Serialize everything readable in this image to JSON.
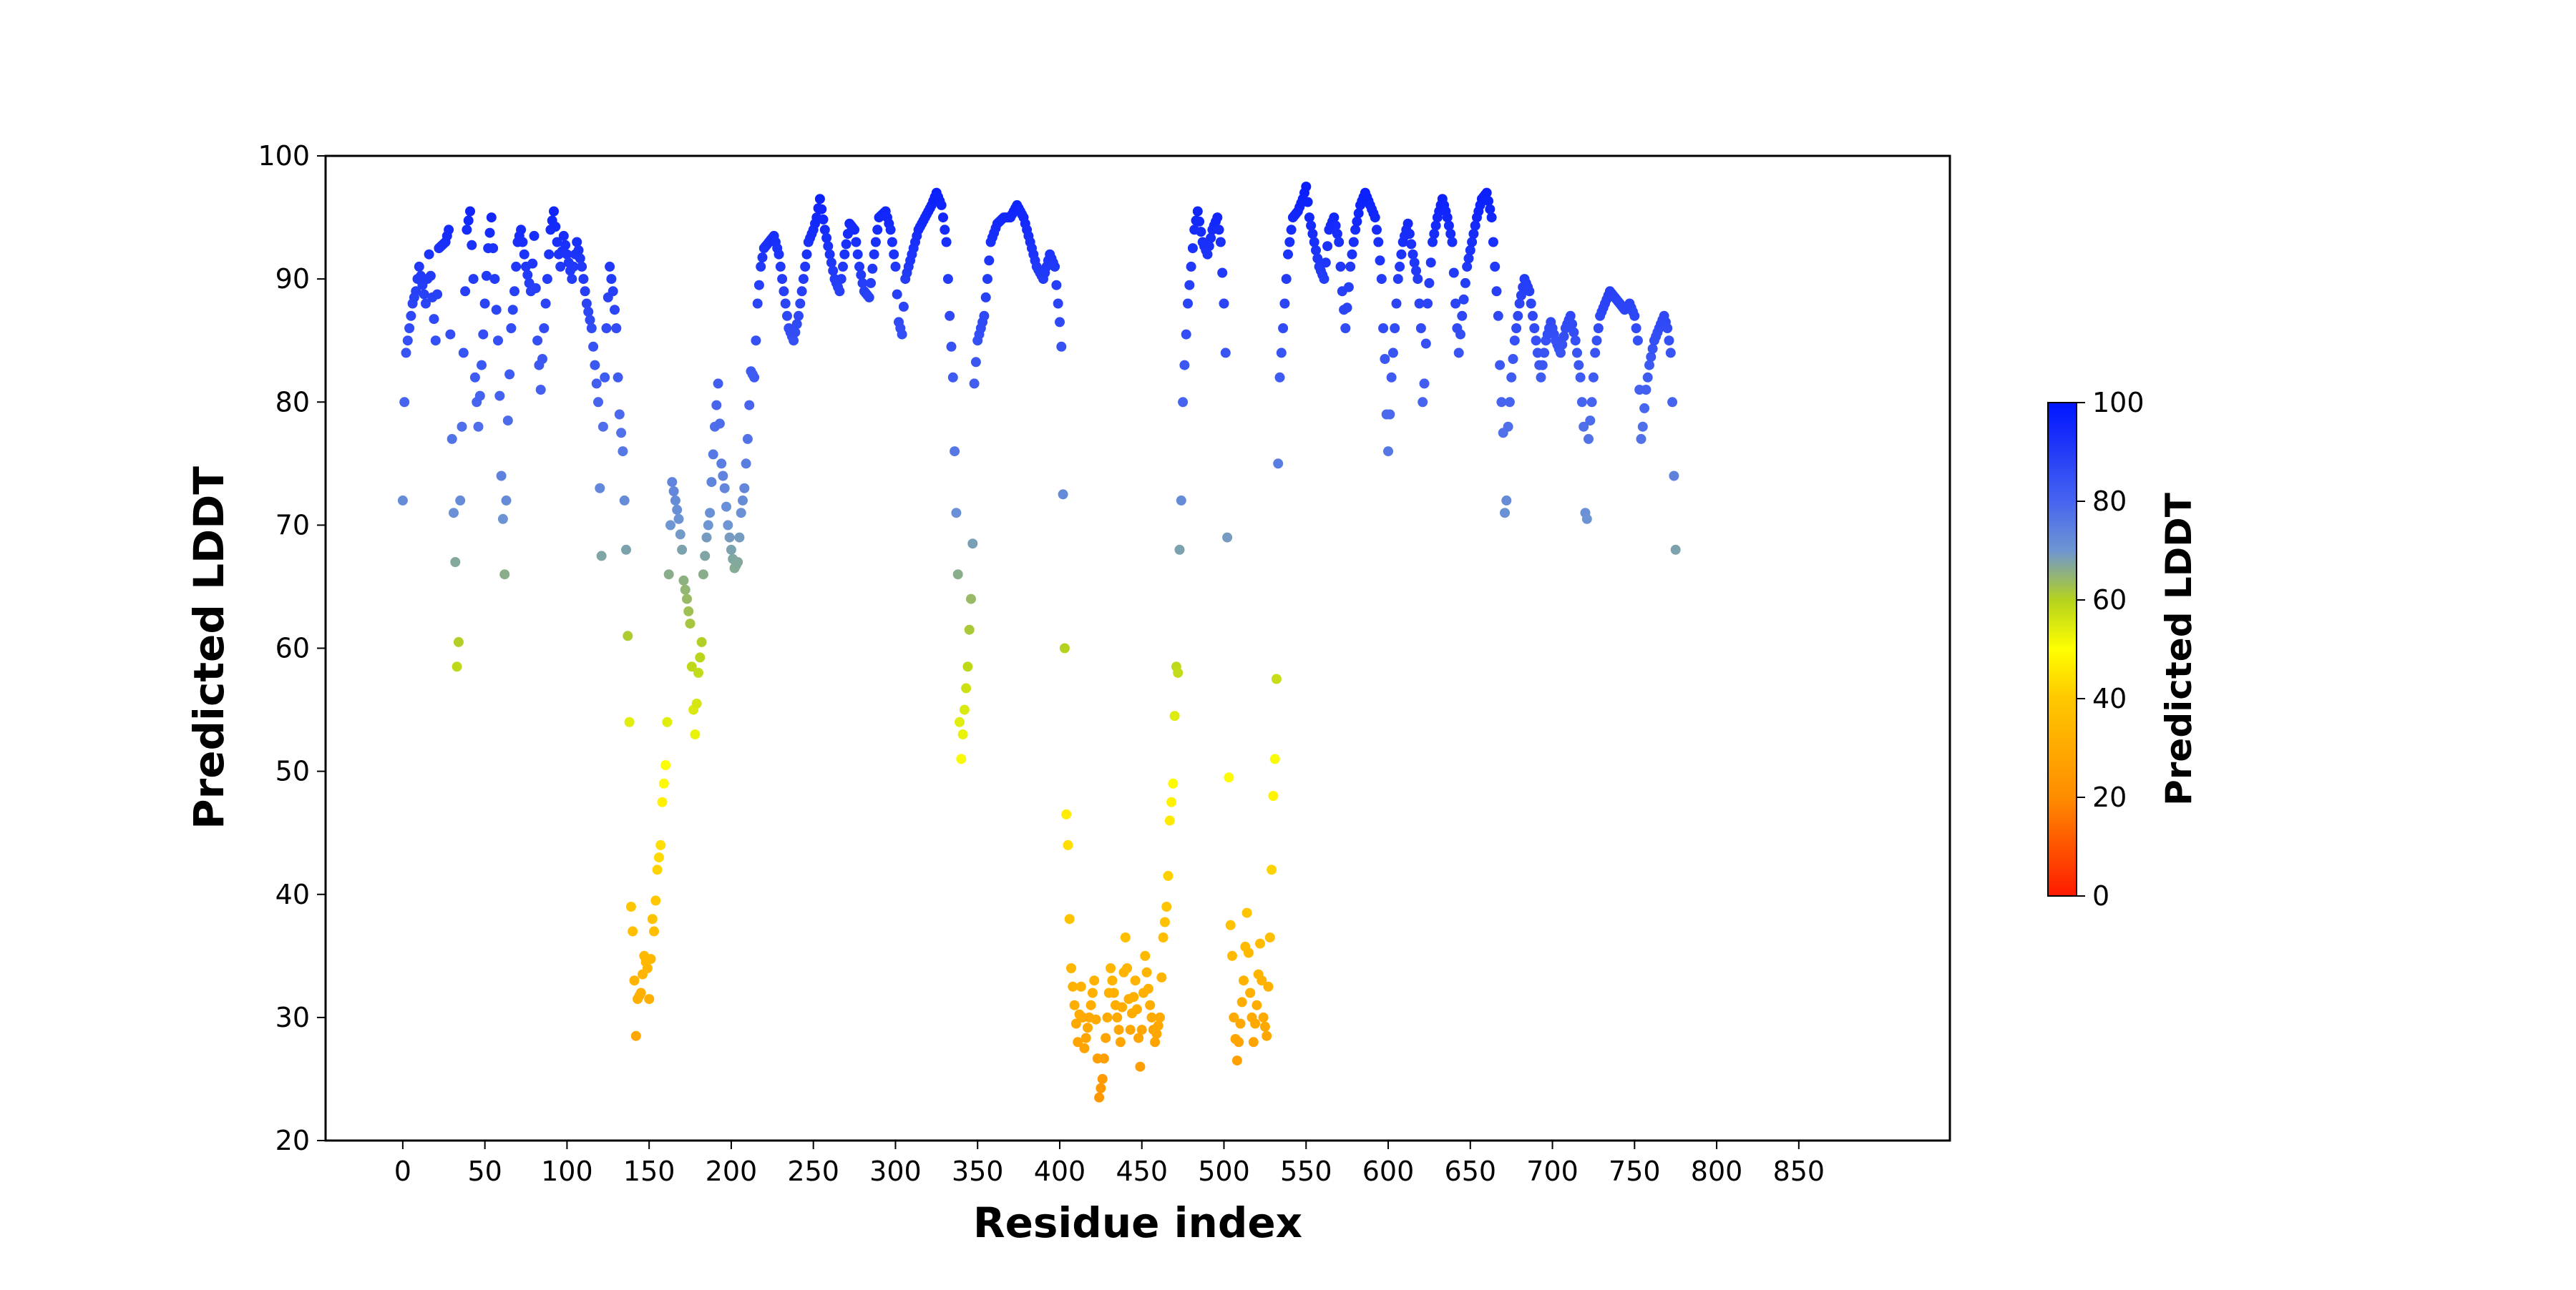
{
  "chart_data": {
    "type": "scatter",
    "title": "",
    "xlabel": "Residue index",
    "ylabel": "Predicted LDDT",
    "xlim": [
      -47,
      942
    ],
    "ylim": [
      20,
      100
    ],
    "xticks": [
      0,
      50,
      100,
      150,
      200,
      250,
      300,
      350,
      400,
      450,
      500,
      550,
      600,
      650,
      700,
      750,
      800,
      850
    ],
    "yticks": [
      20,
      30,
      40,
      50,
      60,
      70,
      80,
      90,
      100
    ],
    "grid": false,
    "legend": "none",
    "point_color_by": "y",
    "colorbar": {
      "label": "Predicted LDDT",
      "range": [
        0,
        100
      ],
      "ticks": [
        0,
        20,
        40,
        60,
        80,
        100
      ],
      "colors": [
        {
          "at": 0,
          "color": "#ff1a00"
        },
        {
          "at": 20,
          "color": "#ff8c00"
        },
        {
          "at": 40,
          "color": "#ffc800"
        },
        {
          "at": 50,
          "color": "#ffff00"
        },
        {
          "at": 60,
          "color": "#b4d21e"
        },
        {
          "at": 70,
          "color": "#6e96d2"
        },
        {
          "at": 80,
          "color": "#4664f0"
        },
        {
          "at": 100,
          "color": "#0014ff"
        }
      ]
    },
    "anchors": [
      [
        0,
        72
      ],
      [
        1,
        80
      ],
      [
        2,
        84
      ],
      [
        4,
        86
      ],
      [
        6,
        88
      ],
      [
        8,
        89
      ],
      [
        10,
        91
      ],
      [
        14,
        88
      ],
      [
        16,
        92
      ],
      [
        20,
        85
      ],
      [
        22,
        92.5
      ],
      [
        26,
        93
      ],
      [
        28,
        94
      ],
      [
        30,
        77
      ],
      [
        31,
        71
      ],
      [
        32,
        67
      ],
      [
        33,
        58.5
      ],
      [
        34,
        60.5
      ],
      [
        35,
        72
      ],
      [
        37,
        84
      ],
      [
        39,
        94
      ],
      [
        41,
        95.5
      ],
      [
        43,
        90
      ],
      [
        44,
        82
      ],
      [
        46,
        78
      ],
      [
        48,
        83
      ],
      [
        50,
        88
      ],
      [
        52,
        92.5
      ],
      [
        54,
        95
      ],
      [
        56,
        90
      ],
      [
        58,
        85
      ],
      [
        59,
        80.5
      ],
      [
        60,
        74
      ],
      [
        61,
        70.5
      ],
      [
        62,
        66
      ],
      [
        63,
        72
      ],
      [
        64,
        78.5
      ],
      [
        66,
        86
      ],
      [
        68,
        89
      ],
      [
        70,
        93
      ],
      [
        72,
        94
      ],
      [
        75,
        91
      ],
      [
        78,
        89
      ],
      [
        80,
        93.5
      ],
      [
        82,
        85
      ],
      [
        84,
        81
      ],
      [
        86,
        86
      ],
      [
        88,
        90
      ],
      [
        90,
        94
      ],
      [
        92,
        95.5
      ],
      [
        94,
        93
      ],
      [
        96,
        91
      ],
      [
        98,
        93.5
      ],
      [
        100,
        92
      ],
      [
        103,
        90
      ],
      [
        106,
        93
      ],
      [
        109,
        91
      ],
      [
        112,
        88
      ],
      [
        115,
        86
      ],
      [
        117,
        83
      ],
      [
        119,
        80
      ],
      [
        120,
        73
      ],
      [
        121,
        67.5
      ],
      [
        122,
        78
      ],
      [
        124,
        86
      ],
      [
        126,
        91
      ],
      [
        128,
        89
      ],
      [
        130,
        86
      ],
      [
        131,
        82
      ],
      [
        132,
        79
      ],
      [
        134,
        76
      ],
      [
        136,
        68
      ],
      [
        138,
        54
      ],
      [
        139,
        39
      ],
      [
        140,
        37
      ],
      [
        141,
        33
      ],
      [
        142,
        28.5
      ],
      [
        143,
        31.5
      ],
      [
        145,
        32
      ],
      [
        147,
        35
      ],
      [
        149,
        34
      ],
      [
        150,
        31.5
      ],
      [
        152,
        38
      ],
      [
        153,
        37
      ],
      [
        155,
        42
      ],
      [
        157,
        44
      ],
      [
        158,
        47.5
      ],
      [
        160,
        50.5
      ],
      [
        161,
        54
      ],
      [
        162,
        66
      ],
      [
        163,
        70
      ],
      [
        164,
        73.5
      ],
      [
        166,
        72
      ],
      [
        168,
        70.5
      ],
      [
        170,
        68
      ],
      [
        171,
        65.5
      ],
      [
        173,
        64
      ],
      [
        175,
        62
      ],
      [
        177,
        55
      ],
      [
        178,
        53
      ],
      [
        180,
        58
      ],
      [
        182,
        60.5
      ],
      [
        183,
        66
      ],
      [
        185,
        69
      ],
      [
        187,
        71
      ],
      [
        188,
        73.5
      ],
      [
        190,
        78
      ],
      [
        192,
        81.5
      ],
      [
        194,
        75
      ],
      [
        196,
        73
      ],
      [
        198,
        70
      ],
      [
        200,
        68
      ],
      [
        202,
        66.5
      ],
      [
        204,
        67
      ],
      [
        206,
        71
      ],
      [
        208,
        73
      ],
      [
        210,
        77
      ],
      [
        212,
        82.5
      ],
      [
        214,
        82
      ],
      [
        216,
        88
      ],
      [
        218,
        91
      ],
      [
        220,
        92.5
      ],
      [
        223,
        93
      ],
      [
        226,
        93.5
      ],
      [
        229,
        92
      ],
      [
        232,
        89
      ],
      [
        235,
        86
      ],
      [
        238,
        85
      ],
      [
        241,
        87
      ],
      [
        244,
        90
      ],
      [
        247,
        93
      ],
      [
        250,
        94
      ],
      [
        252,
        95
      ],
      [
        254,
        96.5
      ],
      [
        257,
        94
      ],
      [
        260,
        92
      ],
      [
        263,
        90
      ],
      [
        266,
        89
      ],
      [
        269,
        92
      ],
      [
        272,
        94.5
      ],
      [
        275,
        94
      ],
      [
        278,
        91
      ],
      [
        281,
        89
      ],
      [
        284,
        88.5
      ],
      [
        287,
        92
      ],
      [
        290,
        95
      ],
      [
        294,
        95.5
      ],
      [
        297,
        94
      ],
      [
        300,
        91
      ],
      [
        302,
        86.5
      ],
      [
        304,
        85.5
      ],
      [
        306,
        90
      ],
      [
        310,
        92
      ],
      [
        314,
        94
      ],
      [
        318,
        95
      ],
      [
        322,
        96
      ],
      [
        325,
        97
      ],
      [
        328,
        96
      ],
      [
        331,
        93
      ],
      [
        333,
        87
      ],
      [
        335,
        82
      ],
      [
        336,
        76
      ],
      [
        338,
        66
      ],
      [
        339,
        54
      ],
      [
        340,
        51
      ],
      [
        342,
        55
      ],
      [
        344,
        58.5
      ],
      [
        345,
        61.5
      ],
      [
        346,
        64
      ],
      [
        347,
        68.5
      ],
      [
        348,
        81.5
      ],
      [
        350,
        85
      ],
      [
        352,
        86
      ],
      [
        354,
        87
      ],
      [
        356,
        90
      ],
      [
        358,
        93
      ],
      [
        362,
        94.5
      ],
      [
        366,
        95
      ],
      [
        370,
        95
      ],
      [
        374,
        96
      ],
      [
        378,
        95
      ],
      [
        382,
        93
      ],
      [
        386,
        91
      ],
      [
        390,
        90
      ],
      [
        394,
        92
      ],
      [
        397,
        91
      ],
      [
        399,
        88
      ],
      [
        400,
        86.5
      ],
      [
        401,
        84.5
      ],
      [
        402,
        72.5
      ],
      [
        403,
        60
      ],
      [
        404,
        46.5
      ],
      [
        405,
        44
      ],
      [
        406,
        38
      ],
      [
        407,
        34
      ],
      [
        409,
        31
      ],
      [
        411,
        28
      ],
      [
        413,
        32.5
      ],
      [
        415,
        27.5
      ],
      [
        418,
        30
      ],
      [
        421,
        33
      ],
      [
        424,
        23.5
      ],
      [
        426,
        25
      ],
      [
        429,
        30
      ],
      [
        431,
        34
      ],
      [
        434,
        31
      ],
      [
        437,
        28
      ],
      [
        440,
        36.5
      ],
      [
        443,
        29
      ],
      [
        446,
        33
      ],
      [
        449,
        26
      ],
      [
        452,
        35
      ],
      [
        455,
        31
      ],
      [
        458,
        28
      ],
      [
        461,
        30
      ],
      [
        463,
        36.5
      ],
      [
        465,
        39
      ],
      [
        466,
        41.5
      ],
      [
        467,
        46
      ],
      [
        468,
        47.5
      ],
      [
        469,
        49
      ],
      [
        470,
        54.5
      ],
      [
        471,
        58.5
      ],
      [
        472,
        58
      ],
      [
        473,
        68
      ],
      [
        474,
        72
      ],
      [
        475,
        80
      ],
      [
        476,
        83
      ],
      [
        478,
        88
      ],
      [
        480,
        91
      ],
      [
        482,
        94
      ],
      [
        484,
        95.5
      ],
      [
        487,
        93
      ],
      [
        490,
        92
      ],
      [
        493,
        94
      ],
      [
        496,
        95
      ],
      [
        498,
        93
      ],
      [
        500,
        88
      ],
      [
        501,
        84
      ],
      [
        502,
        69
      ],
      [
        503,
        49.5
      ],
      [
        504,
        37.5
      ],
      [
        505,
        35
      ],
      [
        506,
        30
      ],
      [
        508,
        26.5
      ],
      [
        510,
        29.5
      ],
      [
        512,
        33
      ],
      [
        514,
        38.5
      ],
      [
        516,
        32
      ],
      [
        518,
        28
      ],
      [
        520,
        31
      ],
      [
        522,
        36
      ],
      [
        524,
        30
      ],
      [
        526,
        28.5
      ],
      [
        528,
        36.5
      ],
      [
        529,
        42
      ],
      [
        530,
        48
      ],
      [
        531,
        51
      ],
      [
        532,
        57.5
      ],
      [
        533,
        75
      ],
      [
        534,
        82
      ],
      [
        535,
        84
      ],
      [
        537,
        88
      ],
      [
        539,
        92
      ],
      [
        542,
        95
      ],
      [
        545,
        95.5
      ],
      [
        548,
        96.5
      ],
      [
        550,
        97.5
      ],
      [
        552,
        95
      ],
      [
        555,
        93
      ],
      [
        558,
        91
      ],
      [
        561,
        90
      ],
      [
        564,
        94
      ],
      [
        567,
        95
      ],
      [
        570,
        93
      ],
      [
        572,
        89
      ],
      [
        574,
        86
      ],
      [
        577,
        91
      ],
      [
        580,
        94
      ],
      [
        583,
        96
      ],
      [
        586,
        97
      ],
      [
        589,
        96
      ],
      [
        592,
        95
      ],
      [
        594,
        93
      ],
      [
        596,
        90
      ],
      [
        597,
        86
      ],
      [
        598,
        83.5
      ],
      [
        599,
        79
      ],
      [
        600,
        76
      ],
      [
        602,
        82
      ],
      [
        604,
        86
      ],
      [
        606,
        90
      ],
      [
        609,
        93
      ],
      [
        612,
        94.5
      ],
      [
        615,
        92
      ],
      [
        618,
        90
      ],
      [
        620,
        86
      ],
      [
        621,
        80
      ],
      [
        622,
        81.5
      ],
      [
        624,
        88
      ],
      [
        627,
        93
      ],
      [
        630,
        95
      ],
      [
        633,
        96.5
      ],
      [
        636,
        95
      ],
      [
        639,
        93
      ],
      [
        641,
        88
      ],
      [
        643,
        84
      ],
      [
        645,
        87
      ],
      [
        648,
        91
      ],
      [
        651,
        93
      ],
      [
        654,
        95
      ],
      [
        657,
        96.5
      ],
      [
        660,
        97
      ],
      [
        663,
        95
      ],
      [
        665,
        91
      ],
      [
        667,
        87
      ],
      [
        668,
        83
      ],
      [
        669,
        80
      ],
      [
        670,
        77.5
      ],
      [
        671,
        71
      ],
      [
        672,
        72
      ],
      [
        673,
        78
      ],
      [
        675,
        82
      ],
      [
        677,
        85
      ],
      [
        680,
        88
      ],
      [
        683,
        90
      ],
      [
        686,
        89
      ],
      [
        689,
        86
      ],
      [
        691,
        84
      ],
      [
        693,
        82
      ],
      [
        696,
        85
      ],
      [
        699,
        86.5
      ],
      [
        702,
        85
      ],
      [
        705,
        84
      ],
      [
        708,
        86
      ],
      [
        711,
        87
      ],
      [
        714,
        85
      ],
      [
        717,
        82
      ],
      [
        719,
        78
      ],
      [
        720,
        71
      ],
      [
        721,
        70.5
      ],
      [
        722,
        77
      ],
      [
        724,
        80
      ],
      [
        726,
        84
      ],
      [
        729,
        87
      ],
      [
        732,
        88
      ],
      [
        735,
        89
      ],
      [
        738,
        88.5
      ],
      [
        741,
        88
      ],
      [
        744,
        87.5
      ],
      [
        747,
        88
      ],
      [
        750,
        87
      ],
      [
        752,
        85
      ],
      [
        753,
        81
      ],
      [
        754,
        77
      ],
      [
        755,
        78
      ],
      [
        757,
        81
      ],
      [
        759,
        83
      ],
      [
        762,
        85
      ],
      [
        765,
        86
      ],
      [
        768,
        87
      ],
      [
        770,
        86
      ],
      [
        772,
        84
      ],
      [
        773,
        80
      ],
      [
        775,
        68
      ]
    ]
  }
}
